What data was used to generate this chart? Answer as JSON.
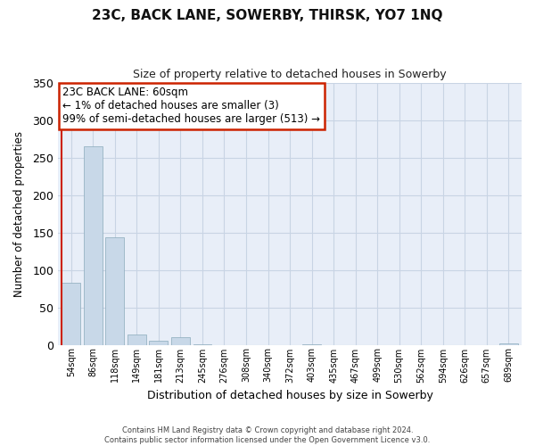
{
  "title": "23C, BACK LANE, SOWERBY, THIRSK, YO7 1NQ",
  "subtitle": "Size of property relative to detached houses in Sowerby",
  "xlabel": "Distribution of detached houses by size in Sowerby",
  "ylabel": "Number of detached properties",
  "bar_labels": [
    "54sqm",
    "86sqm",
    "118sqm",
    "149sqm",
    "181sqm",
    "213sqm",
    "245sqm",
    "276sqm",
    "308sqm",
    "340sqm",
    "372sqm",
    "403sqm",
    "435sqm",
    "467sqm",
    "499sqm",
    "530sqm",
    "562sqm",
    "594sqm",
    "626sqm",
    "657sqm",
    "689sqm"
  ],
  "bar_values": [
    83,
    265,
    144,
    14,
    5,
    10,
    1,
    0,
    0,
    0,
    0,
    1,
    0,
    0,
    0,
    0,
    0,
    0,
    0,
    0,
    2
  ],
  "bar_color": "#c8d8e8",
  "bar_edge_color": "#8aaabb",
  "highlight_bar_index": 0,
  "highlight_line_color": "#cc2200",
  "ylim": [
    0,
    350
  ],
  "yticks": [
    0,
    50,
    100,
    150,
    200,
    250,
    300,
    350
  ],
  "annotation_title": "23C BACK LANE: 60sqm",
  "annotation_line1": "← 1% of detached houses are smaller (3)",
  "annotation_line2": "99% of semi-detached houses are larger (513) →",
  "annotation_box_facecolor": "#ffffff",
  "annotation_border_color": "#cc2200",
  "footer_line1": "Contains HM Land Registry data © Crown copyright and database right 2024.",
  "footer_line2": "Contains public sector information licensed under the Open Government Licence v3.0.",
  "plot_bg_color": "#e8eef8",
  "fig_bg_color": "#ffffff",
  "grid_color": "#c8d4e4"
}
